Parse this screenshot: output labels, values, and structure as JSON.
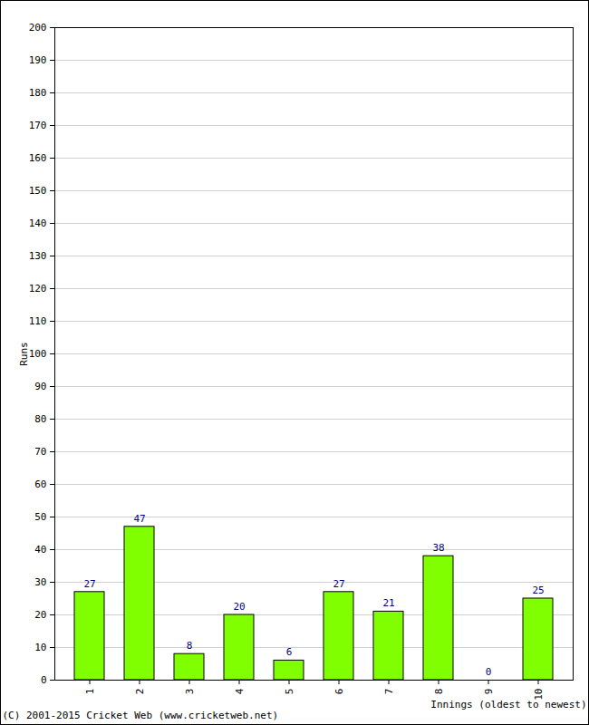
{
  "chart_data": {
    "type": "bar",
    "categories": [
      "1",
      "2",
      "3",
      "4",
      "5",
      "6",
      "7",
      "8",
      "9",
      "10"
    ],
    "values": [
      27,
      47,
      8,
      20,
      6,
      27,
      21,
      38,
      0,
      25
    ],
    "color": "#80ff00",
    "x_label": "Innings (oldest to newest)",
    "y_label": "Runs",
    "annotations": [
      "(C) 2001-2015 Cricket Web (www.cricketweb.net)"
    ],
    "ylim": [
      0,
      200
    ],
    "yticks": [
      0,
      10,
      20,
      30,
      40,
      50,
      60,
      70,
      80,
      90,
      100,
      110,
      120,
      130,
      140,
      150,
      160,
      170,
      180,
      190,
      200
    ],
    "grid": true,
    "data_labels": true
  }
}
